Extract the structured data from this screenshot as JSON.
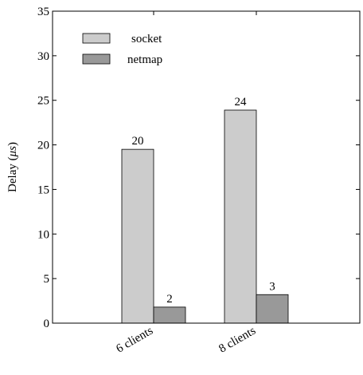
{
  "chart_data": {
    "type": "bar",
    "categories": [
      "6 clients",
      "8 clients"
    ],
    "series": [
      {
        "name": "socket",
        "values": [
          19.5,
          23.9
        ],
        "labels": [
          "20",
          "24"
        ],
        "color": "#cccccc"
      },
      {
        "name": "netmap",
        "values": [
          1.8,
          3.2
        ],
        "labels": [
          "2",
          "3"
        ],
        "color": "#999999"
      }
    ],
    "ylabel": "Delay (μs)",
    "ylabel_prefix": "Delay (",
    "ylabel_unit": "μs",
    "ylabel_suffix": ")",
    "ylim": [
      0,
      35
    ],
    "yticks": [
      0,
      5,
      10,
      15,
      20,
      25,
      30,
      35
    ],
    "legend_position": "top-left",
    "grid": false
  }
}
